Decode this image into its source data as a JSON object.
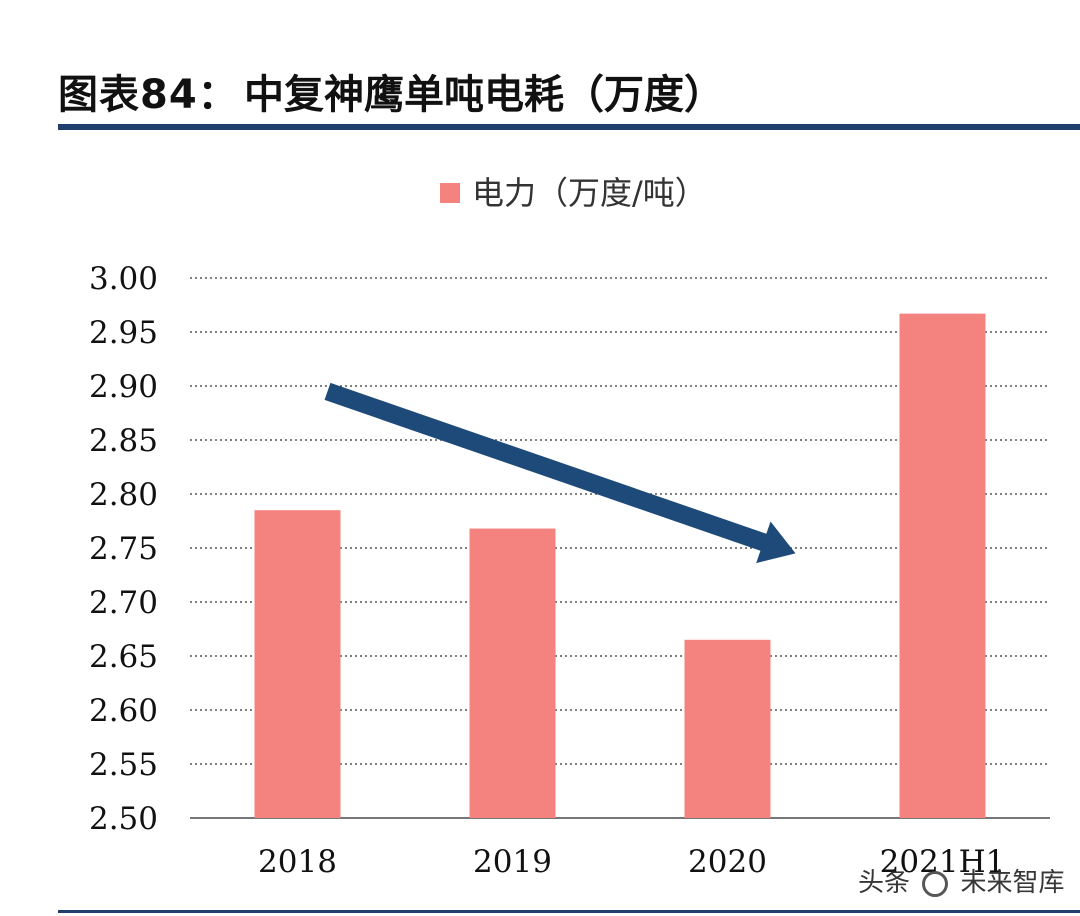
{
  "header": {
    "figure_label": "图表84：",
    "title": "中复神鹰单吨电耗（万度）"
  },
  "watermark": {
    "left_text": "头条",
    "right_text": "未来智库"
  },
  "colors": {
    "bar": "#f4827e",
    "arrow": "#1d4a78",
    "rule": "#1f3f6e",
    "grid": "#555555"
  },
  "chart_data": {
    "type": "bar",
    "title": "中复神鹰单吨电耗（万度）",
    "categories": [
      "2018",
      "2019",
      "2020",
      "2021H1"
    ],
    "series": [
      {
        "name": "电力（万度/吨）",
        "values": [
          2.785,
          2.768,
          2.665,
          2.967
        ]
      }
    ],
    "ylim": [
      2.5,
      3.0
    ],
    "yticks": [
      "2.50",
      "2.55",
      "2.60",
      "2.65",
      "2.70",
      "2.75",
      "2.80",
      "2.85",
      "2.90",
      "2.95",
      "3.00"
    ],
    "grid": "dotted horizontal",
    "legend": "top-center",
    "annotation": {
      "type": "arrow",
      "from": [
        "2018",
        2.895
      ],
      "to": [
        "2020",
        2.745
      ],
      "meaning": "downward trend"
    }
  }
}
